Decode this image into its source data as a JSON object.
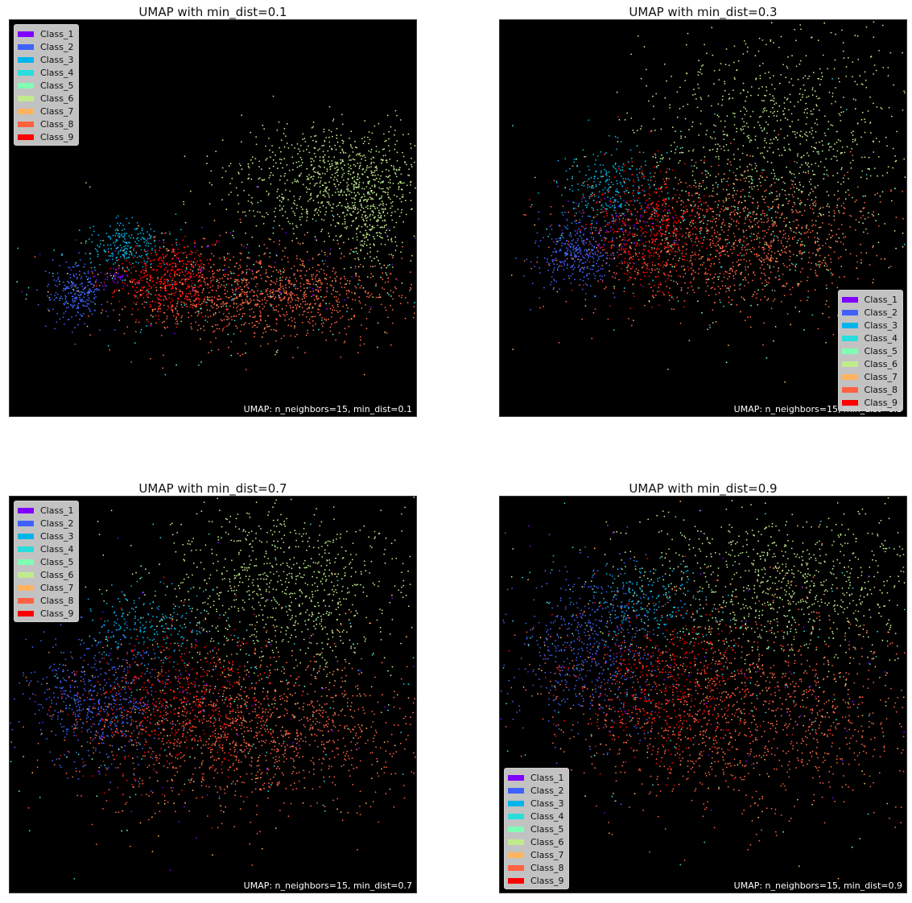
{
  "chart_data": [
    {
      "type": "scatter",
      "title": "UMAP with min_dist=0.1",
      "annotation": "UMAP: n_neighbors=15, min_dist=0.1",
      "legend_position": "upper-left",
      "background": "#000000",
      "ticks": "none",
      "series": [
        {
          "name": "Class_1",
          "color": "#8000ff"
        },
        {
          "name": "Class_2",
          "color": "#4062fa"
        },
        {
          "name": "Class_3",
          "color": "#00b5eb"
        },
        {
          "name": "Class_4",
          "color": "#2adddd"
        },
        {
          "name": "Class_5",
          "color": "#80ffb4"
        },
        {
          "name": "Class_6",
          "color": "#c0eb8d"
        },
        {
          "name": "Class_7",
          "color": "#ffb360"
        },
        {
          "name": "Class_8",
          "color": "#ff6241"
        },
        {
          "name": "Class_9",
          "color": "#ff0000"
        }
      ]
    },
    {
      "type": "scatter",
      "title": "UMAP with min_dist=0.3",
      "annotation": "UMAP: n_neighbors=15, min_dist=0.3",
      "legend_position": "lower-right",
      "background": "#000000",
      "ticks": "none",
      "series": [
        {
          "name": "Class_1",
          "color": "#8000ff"
        },
        {
          "name": "Class_2",
          "color": "#4062fa"
        },
        {
          "name": "Class_3",
          "color": "#00b5eb"
        },
        {
          "name": "Class_4",
          "color": "#2adddd"
        },
        {
          "name": "Class_5",
          "color": "#80ffb4"
        },
        {
          "name": "Class_6",
          "color": "#c0eb8d"
        },
        {
          "name": "Class_7",
          "color": "#ffb360"
        },
        {
          "name": "Class_8",
          "color": "#ff6241"
        },
        {
          "name": "Class_9",
          "color": "#ff0000"
        }
      ]
    },
    {
      "type": "scatter",
      "title": "UMAP with min_dist=0.7",
      "annotation": "UMAP: n_neighbors=15, min_dist=0.7",
      "legend_position": "upper-left",
      "background": "#000000",
      "ticks": "none",
      "series": [
        {
          "name": "Class_1",
          "color": "#8000ff"
        },
        {
          "name": "Class_2",
          "color": "#4062fa"
        },
        {
          "name": "Class_3",
          "color": "#00b5eb"
        },
        {
          "name": "Class_4",
          "color": "#2adddd"
        },
        {
          "name": "Class_5",
          "color": "#80ffb4"
        },
        {
          "name": "Class_6",
          "color": "#c0eb8d"
        },
        {
          "name": "Class_7",
          "color": "#ffb360"
        },
        {
          "name": "Class_8",
          "color": "#ff6241"
        },
        {
          "name": "Class_9",
          "color": "#ff0000"
        }
      ]
    },
    {
      "type": "scatter",
      "title": "UMAP with min_dist=0.9",
      "annotation": "UMAP: n_neighbors=15, min_dist=0.9",
      "legend_position": "lower-left",
      "background": "#000000",
      "ticks": "none",
      "series": [
        {
          "name": "Class_1",
          "color": "#8000ff"
        },
        {
          "name": "Class_2",
          "color": "#4062fa"
        },
        {
          "name": "Class_3",
          "color": "#00b5eb"
        },
        {
          "name": "Class_4",
          "color": "#2adddd"
        },
        {
          "name": "Class_5",
          "color": "#80ffb4"
        },
        {
          "name": "Class_6",
          "color": "#c0eb8d"
        },
        {
          "name": "Class_7",
          "color": "#ffb360"
        },
        {
          "name": "Class_8",
          "color": "#ff6241"
        },
        {
          "name": "Class_9",
          "color": "#ff0000"
        }
      ]
    }
  ]
}
